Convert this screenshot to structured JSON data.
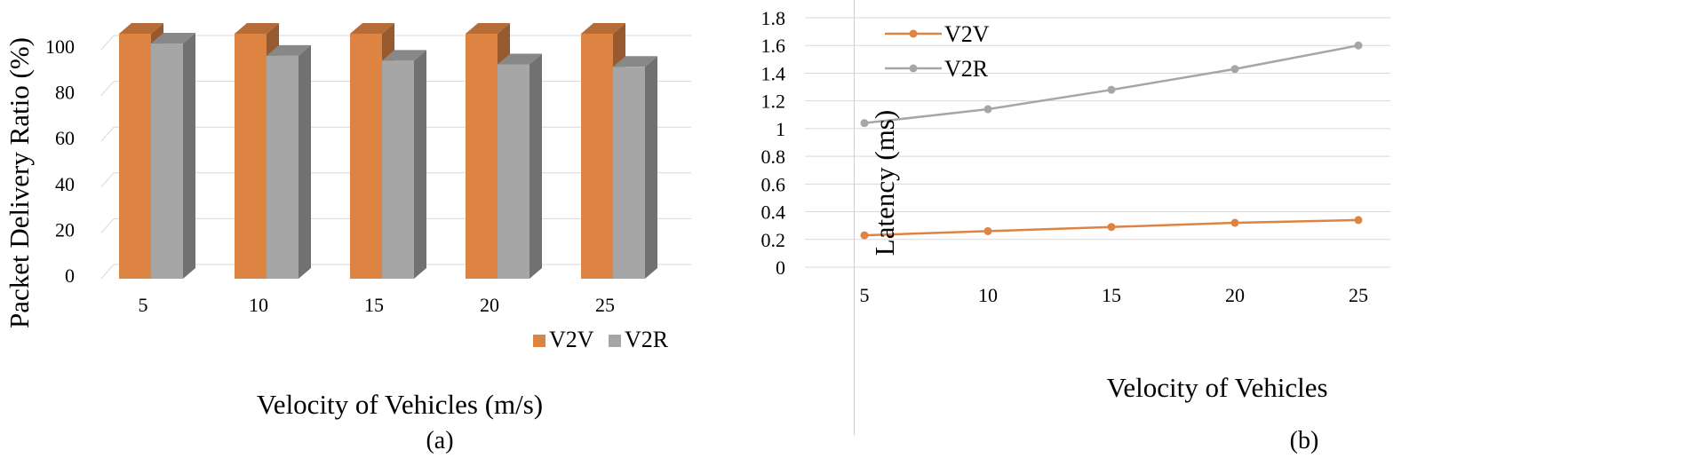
{
  "chart_data": [
    {
      "type": "bar",
      "panel_label": "(a)",
      "categories": [
        "5",
        "10",
        "15",
        "20",
        "25"
      ],
      "series": [
        {
          "name": "V2V",
          "values": [
            100,
            100,
            100,
            100,
            100
          ],
          "color": "#dd8443"
        },
        {
          "name": "V2R",
          "values": [
            96,
            91,
            89,
            87.5,
            86.5
          ],
          "color": "#a6a6a6"
        }
      ],
      "xlabel": "Velocity of Vehicles (m/s)",
      "ylabel": "Packet Delivery Ratio (%)",
      "ylim": [
        0,
        100
      ],
      "yticks": [
        "0",
        "20",
        "40",
        "60",
        "80",
        "100"
      ],
      "style": "3d",
      "legend": "bottom-right",
      "grid": true
    },
    {
      "type": "line",
      "panel_label": "(b)",
      "x": [
        "5",
        "10",
        "15",
        "20",
        "25"
      ],
      "series": [
        {
          "name": "V2V",
          "values": [
            0.23,
            0.26,
            0.29,
            0.32,
            0.34
          ],
          "color": "#dd8443"
        },
        {
          "name": "V2R",
          "values": [
            1.04,
            1.14,
            1.28,
            1.43,
            1.6
          ],
          "color": "#a6a6a6"
        }
      ],
      "xlabel": "Velocity of Vehicles",
      "ylabel": "Latency (ms)",
      "ylim": [
        0,
        1.8
      ],
      "yticks": [
        "0",
        "0.2",
        "0.4",
        "0.6",
        "0.8",
        "1",
        "1.2",
        "1.4",
        "1.6",
        "1.8"
      ],
      "legend": "top-left",
      "grid": true
    }
  ]
}
